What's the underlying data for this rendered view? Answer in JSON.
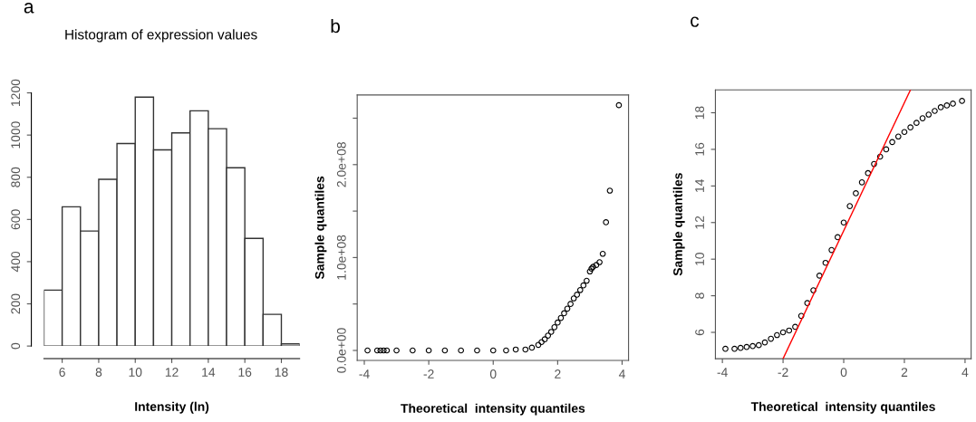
{
  "chart_data": [
    {
      "type": "histogram",
      "title": "Histogram of expression values",
      "xlabel": "Intensity (ln)",
      "annotations": [
        "a"
      ],
      "bins": [
        5,
        6,
        7,
        8,
        9,
        10,
        11,
        12,
        13,
        14,
        15,
        16,
        17,
        18,
        19
      ],
      "values": [
        265,
        660,
        545,
        790,
        960,
        1180,
        930,
        1010,
        1115,
        1030,
        845,
        510,
        150,
        10
      ],
      "color": "#ffffff",
      "xlim": [
        5,
        19
      ],
      "xticks": [
        6,
        8,
        10,
        12,
        14,
        16,
        18
      ],
      "ylim": [
        0,
        1200
      ],
      "yticks": [
        0,
        200,
        400,
        600,
        800,
        1000,
        1200
      ],
      "grid": false
    },
    {
      "type": "scatter",
      "xlabel": "Theoretical  intensity quantiles",
      "ylabel": "Sample quantiles",
      "annotations": [
        "b"
      ],
      "marker": "circle",
      "series": [
        {
          "color": "#000000",
          "x": [
            -3.9,
            -3.6,
            -3.5,
            -3.4,
            -3.3,
            -3.0,
            -2.5,
            -2.0,
            -1.5,
            -1.0,
            -0.5,
            0.0,
            0.4,
            0.7,
            1.0,
            1.2,
            1.4,
            1.5,
            1.6,
            1.7,
            1.8,
            1.9,
            2.0,
            2.1,
            2.2,
            2.3,
            2.4,
            2.5,
            2.6,
            2.7,
            2.8,
            2.9,
            3.0,
            3.05,
            3.1,
            3.2,
            3.3,
            3.4,
            3.5,
            3.62,
            3.9
          ],
          "values": [
            0,
            0,
            0,
            0,
            0,
            0,
            0,
            0,
            0,
            0,
            0,
            0,
            0,
            1000000.0,
            1000000.0,
            3000000.0,
            6000000.0,
            9000000.0,
            12000000.0,
            16000000.0,
            20000000.0,
            25000000.0,
            30000000.0,
            35000000.0,
            40000000.0,
            45000000.0,
            50000000.0,
            56000000.0,
            60000000.0,
            65000000.0,
            70000000.0,
            75000000.0,
            85000000.0,
            88000000.0,
            90000000.0,
            92000000.0,
            95000000.0,
            104000000.0,
            138000000.0,
            172000000.0,
            264000000.0
          ]
        }
      ],
      "xlim": [
        -4.22,
        4.2
      ],
      "xticks": [
        -4,
        -2,
        0,
        2,
        4
      ],
      "ylim": [
        -10700000.0,
        275000000.0
      ],
      "yticks": [
        {
          "value": 0,
          "label": "0.0e+00"
        },
        {
          "value": 50000000.0,
          "label": null
        },
        {
          "value": 100000000.0,
          "label": "1.0e+08"
        },
        {
          "value": 150000000.0,
          "label": null
        },
        {
          "value": 200000000.0,
          "label": "2.0e+08"
        },
        {
          "value": 250000000.0,
          "label": null
        }
      ],
      "grid": false
    },
    {
      "type": "scatter",
      "xlabel": "Theoretical  intensity quantiles",
      "ylabel": "Sample quantiles",
      "annotations": [
        "c"
      ],
      "marker": "circle",
      "series": [
        {
          "color": "#000000",
          "x": [
            -3.9,
            -3.6,
            -3.4,
            -3.2,
            -3.0,
            -2.8,
            -2.6,
            -2.4,
            -2.2,
            -2.0,
            -1.8,
            -1.6,
            -1.4,
            -1.2,
            -1.0,
            -0.8,
            -0.6,
            -0.4,
            -0.2,
            0.0,
            0.2,
            0.4,
            0.6,
            0.8,
            1.0,
            1.2,
            1.4,
            1.6,
            1.8,
            2.0,
            2.2,
            2.4,
            2.6,
            2.8,
            3.0,
            3.2,
            3.4,
            3.6,
            3.9
          ],
          "values": [
            5.1,
            5.1,
            5.15,
            5.2,
            5.25,
            5.3,
            5.45,
            5.65,
            5.85,
            6.0,
            6.1,
            6.3,
            6.9,
            7.6,
            8.3,
            9.1,
            9.8,
            10.5,
            11.2,
            12.0,
            12.9,
            13.6,
            14.2,
            14.7,
            15.2,
            15.6,
            16.0,
            16.4,
            16.7,
            16.95,
            17.2,
            17.45,
            17.7,
            17.9,
            18.1,
            18.3,
            18.4,
            18.5,
            18.65
          ]
        },
        {
          "type": "line",
          "marker": "none",
          "color": "#ff0000",
          "x": [
            -2.0,
            2.2
          ],
          "values": [
            4.56,
            19.25
          ]
        }
      ],
      "xlim": [
        -4.23,
        4.2
      ],
      "xticks": [
        -4,
        -2,
        0,
        2,
        4
      ],
      "ylim": [
        4.56,
        19.25
      ],
      "yticks": [
        6,
        8,
        10,
        12,
        14,
        16,
        18
      ],
      "grid": false
    }
  ]
}
